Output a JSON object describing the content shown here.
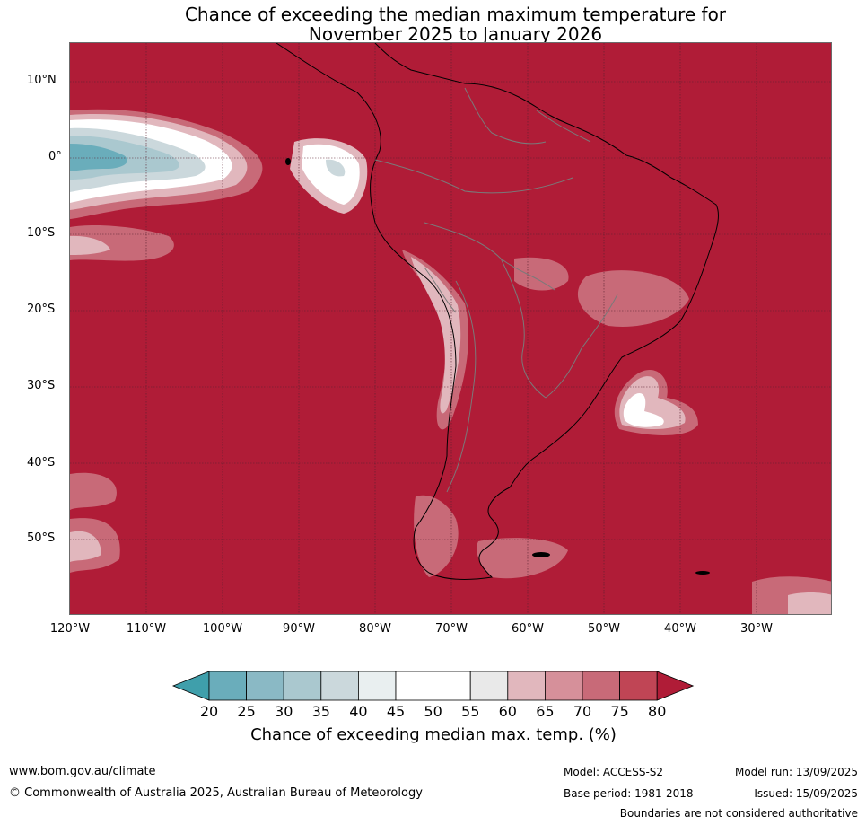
{
  "title": {
    "line1": "Chance of exceeding the median maximum temperature for",
    "line2": "November 2025 to January 2026"
  },
  "map": {
    "background_color": "#b01c37",
    "lat_labels": [
      "10°N",
      "0°",
      "10°S",
      "20°S",
      "30°S",
      "40°S",
      "50°S"
    ],
    "lon_labels": [
      "120°W",
      "110°W",
      "100°W",
      "90°W",
      "80°W",
      "70°W",
      "60°W",
      "50°W",
      "40°W",
      "30°W"
    ]
  },
  "colorbar": {
    "title": "Chance of exceeding median max. temp. (%)",
    "labels": [
      "20",
      "25",
      "30",
      "35",
      "40",
      "45",
      "50",
      "55",
      "60",
      "65",
      "70",
      "75",
      "80"
    ],
    "colors": [
      "#3f9fab",
      "#6aadbb",
      "#8ab9c5",
      "#aac8cf",
      "#cbd8dc",
      "#e9eff0",
      "#ffffff",
      "#ffffff",
      "#e9e9e9",
      "#e1b7bd",
      "#d6909a",
      "#c86a78",
      "#c04555",
      "#b01c37"
    ]
  },
  "footer": {
    "website": "www.bom.gov.au/climate",
    "copyright": "© Commonwealth of Australia 2025, Australian Bureau of Meteorology",
    "model": "Model: ACCESS-S2",
    "base_period": "Base period: 1981-2018",
    "model_run": "Model run: 13/09/2025",
    "issued": "Issued: 15/09/2025",
    "disclaimer": "Boundaries are not considered authoritative"
  }
}
